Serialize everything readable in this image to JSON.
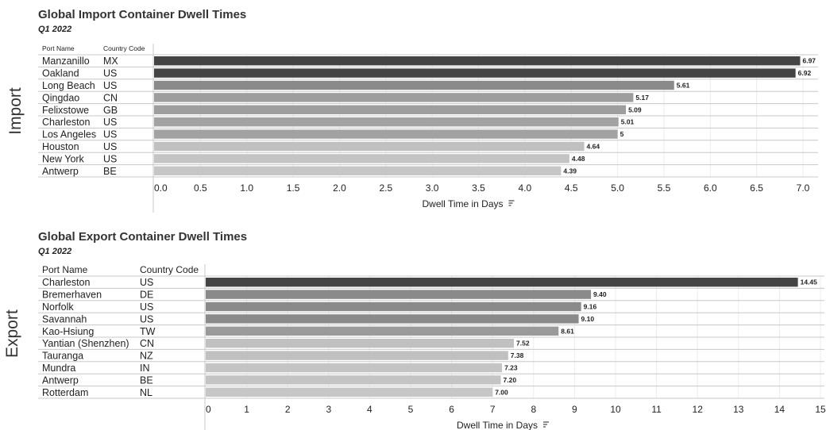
{
  "import_section": {
    "side_label": "Import",
    "title": "Global Import Container Dwell Times",
    "subtitle": "Q1 2022",
    "header_port": "Port Name",
    "header_country": "Country Code",
    "axis_label": "Dwell Time in Days",
    "sort_icon": "sort-icon"
  },
  "export_section": {
    "side_label": "Export",
    "title": "Global Export Container Dwell Times",
    "subtitle": "Q1 2022",
    "header_port": "Port Name",
    "header_country": "Country Code",
    "axis_label": "Dwell Time in Days",
    "sort_icon": "sort-icon"
  },
  "chart_data": [
    {
      "type": "bar",
      "orientation": "horizontal",
      "title": "Global Import Container Dwell Times",
      "subtitle": "Q1 2022",
      "xlabel": "Dwell Time in Days",
      "xlim": [
        0,
        7.0
      ],
      "xticks": [
        "0.0",
        "0.5",
        "1.0",
        "1.5",
        "2.0",
        "2.5",
        "3.0",
        "3.5",
        "4.0",
        "4.5",
        "5.0",
        "5.5",
        "6.0",
        "6.5",
        "7.0"
      ],
      "categories": [
        "Manzanillo",
        "Oakland",
        "Long Beach",
        "Qingdao",
        "Felixstowe",
        "Charleston",
        "Los Angeles",
        "Houston",
        "New York",
        "Antwerp"
      ],
      "country_codes": [
        "MX",
        "US",
        "US",
        "CN",
        "GB",
        "US",
        "US",
        "US",
        "US",
        "BE"
      ],
      "values": [
        6.97,
        6.92,
        5.61,
        5.17,
        5.09,
        5.01,
        5.0,
        4.64,
        4.48,
        4.39
      ],
      "value_labels": [
        "6.97",
        "6.92",
        "5.61",
        "5.17",
        "5.09",
        "5.01",
        "5",
        "4.64",
        "4.48",
        "4.39"
      ],
      "bar_colors": [
        "#444444",
        "#444444",
        "#8a8a8a",
        "#9e9e9e",
        "#9e9e9e",
        "#a2a2a2",
        "#a2a2a2",
        "#c0c0c0",
        "#c4c4c4",
        "#c6c6c6"
      ],
      "grid": true
    },
    {
      "type": "bar",
      "orientation": "horizontal",
      "title": "Global Export Container Dwell Times",
      "subtitle": "Q1 2022",
      "xlabel": "Dwell Time in Days",
      "xlim": [
        0,
        15
      ],
      "xticks": [
        "0",
        "1",
        "2",
        "3",
        "4",
        "5",
        "6",
        "7",
        "8",
        "9",
        "10",
        "11",
        "12",
        "13",
        "14",
        "15"
      ],
      "categories": [
        "Charleston",
        "Bremerhaven",
        "Norfolk",
        "Savannah",
        "Kao-Hsiung",
        "Yantian (Shenzhen)",
        "Tauranga",
        "Mundra",
        "Antwerp",
        "Rotterdam"
      ],
      "country_codes": [
        "US",
        "DE",
        "US",
        "US",
        "TW",
        "CN",
        "NZ",
        "IN",
        "BE",
        "NL"
      ],
      "values": [
        14.45,
        9.4,
        9.16,
        9.1,
        8.61,
        7.52,
        7.38,
        7.23,
        7.2,
        7.0
      ],
      "value_labels": [
        "14.45",
        "9.40",
        "9.16",
        "9.10",
        "8.61",
        "7.52",
        "7.38",
        "7.23",
        "7.20",
        "7.00"
      ],
      "bar_colors": [
        "#444444",
        "#8a8a8a",
        "#8a8a8a",
        "#8a8a8a",
        "#9a9a9a",
        "#c0c0c0",
        "#c0c0c0",
        "#c4c4c4",
        "#c4c4c4",
        "#c6c6c6"
      ],
      "grid": true
    }
  ]
}
